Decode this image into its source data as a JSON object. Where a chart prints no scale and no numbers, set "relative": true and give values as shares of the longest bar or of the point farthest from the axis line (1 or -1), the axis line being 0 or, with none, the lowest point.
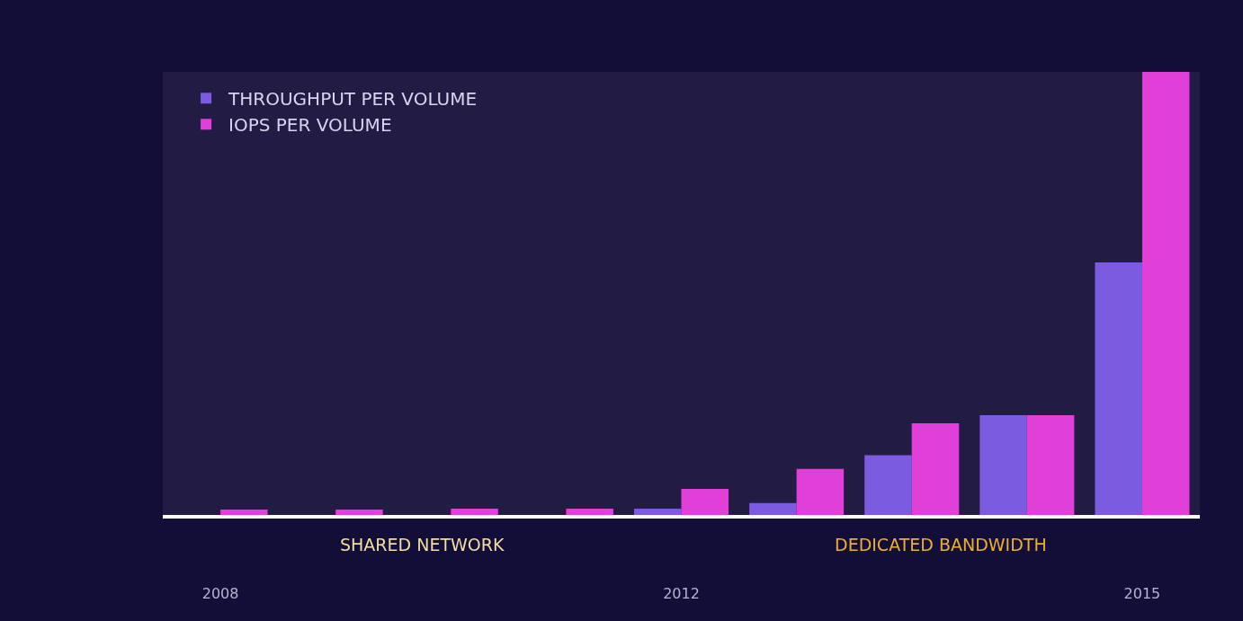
{
  "chart_data": {
    "type": "bar",
    "relative": true,
    "categories": [
      "2008",
      null,
      null,
      null,
      "2012",
      null,
      null,
      null,
      "2015"
    ],
    "series": [
      {
        "name": "THROUGHPUT PER VOLUME",
        "color": "#7b5ce0",
        "values": [
          0,
          0,
          0,
          0,
          0.014,
          0.027,
          0.135,
          0.225,
          0.57
        ]
      },
      {
        "name": "IOPS PER VOLUME",
        "color": "#e040d8",
        "values": [
          0.012,
          0.012,
          0.014,
          0.014,
          0.059,
          0.104,
          0.207,
          0.225,
          1
        ]
      }
    ],
    "annotations": [
      "SHARED NETWORK",
      "DEDICATED BANDWIDTH"
    ],
    "legend": "top left"
  }
}
